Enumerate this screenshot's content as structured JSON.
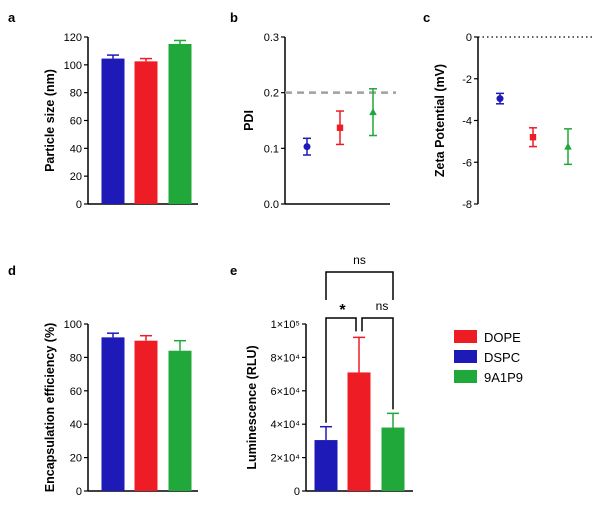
{
  "colors": {
    "DOPE": "#ee1c24",
    "DSPC": "#1d1ab8",
    "9A1P9": "#20a83a"
  },
  "legend": {
    "entries": [
      "DOPE",
      "DSPC",
      "9A1P9"
    ]
  },
  "chart_data": [
    {
      "panel": "a",
      "type": "bar",
      "title": "",
      "xlabel": "",
      "ylabel": "Particle size (nm)",
      "ylim": [
        0,
        120
      ],
      "yticks": [
        0,
        20,
        40,
        60,
        80,
        100,
        120
      ],
      "categories": [
        "DSPC",
        "DOPE",
        "9A1P9"
      ],
      "values": [
        104.5,
        102.5,
        115
      ],
      "errors": [
        2.5,
        2,
        2.5
      ]
    },
    {
      "panel": "b",
      "type": "scatter",
      "title": "",
      "xlabel": "",
      "ylabel": "PDI",
      "ylim": [
        0,
        0.3
      ],
      "yticks": [
        "0.0",
        "0.1",
        "0.2",
        "0.3"
      ],
      "categories": [
        "DSPC",
        "DOPE",
        "9A1P9"
      ],
      "markers": [
        "circle",
        "square",
        "triangle"
      ],
      "values": [
        0.103,
        0.137,
        0.165
      ],
      "errors": [
        0.015,
        0.03,
        0.042
      ],
      "reference_line": 0.2
    },
    {
      "panel": "c",
      "type": "scatter",
      "title": "",
      "xlabel": "",
      "ylabel": "Zeta Potential (mV)",
      "ylim": [
        -8,
        0
      ],
      "yticks": [
        "-8",
        "-6",
        "-4",
        "-2",
        "0"
      ],
      "categories": [
        "DSPC",
        "DOPE",
        "9A1P9"
      ],
      "markers": [
        "circle",
        "square",
        "triangle"
      ],
      "values": [
        -2.95,
        -4.8,
        -5.25
      ],
      "errors": [
        0.25,
        0.45,
        0.85
      ],
      "reference_line": 0
    },
    {
      "panel": "d",
      "type": "bar",
      "title": "",
      "xlabel": "",
      "ylabel": "Encapsulation efficiency (%)",
      "ylim": [
        0,
        100
      ],
      "yticks": [
        0,
        20,
        40,
        60,
        80,
        100
      ],
      "categories": [
        "DSPC",
        "DOPE",
        "9A1P9"
      ],
      "values": [
        92,
        90,
        84
      ],
      "errors": [
        2.5,
        3,
        6
      ]
    },
    {
      "panel": "e",
      "type": "bar",
      "title": "",
      "xlabel": "",
      "ylabel": "Luminescence (RLU)",
      "ylim": [
        0,
        100000
      ],
      "yticks": [
        "0",
        "2×10⁴",
        "4×10⁴",
        "6×10⁴",
        "8×10⁴",
        "1×10⁵"
      ],
      "categories": [
        "DSPC",
        "DOPE",
        "9A1P9"
      ],
      "values": [
        30500,
        71000,
        38000
      ],
      "errors": [
        8000,
        21000,
        8500
      ],
      "significance": [
        {
          "from": "DSPC",
          "to": "DOPE",
          "label": "*"
        },
        {
          "from": "DOPE",
          "to": "9A1P9",
          "label": "ns"
        },
        {
          "from": "DSPC",
          "to": "9A1P9",
          "label": "ns"
        }
      ]
    }
  ]
}
